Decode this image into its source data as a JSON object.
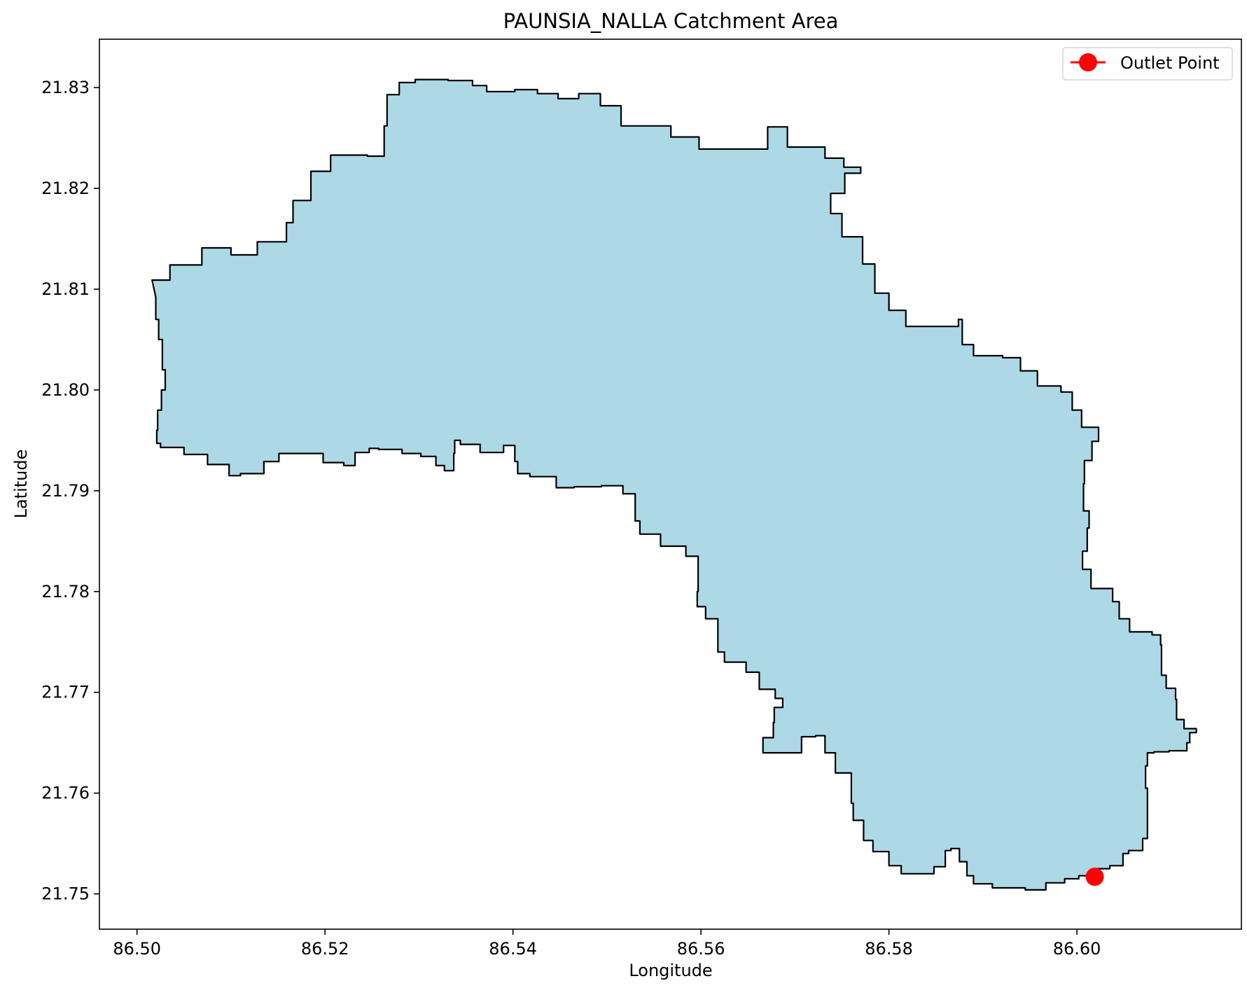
{
  "chart_data": {
    "type": "map",
    "title": "PAUNSIA_NALLA Catchment Area",
    "xlabel": "Longitude",
    "ylabel": "Latitude",
    "xlim": [
      86.496,
      86.6175
    ],
    "ylim": [
      21.7465,
      21.8348
    ],
    "xticks": [
      86.5,
      86.52,
      86.54,
      86.56,
      86.58,
      86.6
    ],
    "yticks": [
      21.75,
      21.76,
      21.77,
      21.78,
      21.79,
      21.8,
      21.81,
      21.82,
      21.83
    ],
    "x_decimals": 2,
    "y_decimals": 2,
    "grid": false,
    "legend": {
      "position": "top-right",
      "entries": [
        {
          "label": "Outlet Point",
          "color": "#ff0000",
          "marker": "circle"
        }
      ]
    },
    "catchment": {
      "fill": "#add8e6",
      "edge": "#000000",
      "boundary": [
        [
          86.5016,
          21.8109
        ],
        [
          86.5035,
          21.8124
        ],
        [
          86.5069,
          21.8141
        ],
        [
          86.51,
          21.8134
        ],
        [
          86.5128,
          21.8147
        ],
        [
          86.5159,
          21.8166
        ],
        [
          86.5166,
          21.8188
        ],
        [
          86.5185,
          21.8217
        ],
        [
          86.5206,
          21.8233
        ],
        [
          86.5245,
          21.8232
        ],
        [
          86.5263,
          21.8262
        ],
        [
          86.5266,
          21.8293
        ],
        [
          86.5279,
          21.8305
        ],
        [
          86.5296,
          21.8308
        ],
        [
          86.5331,
          21.8307
        ],
        [
          86.5357,
          21.8302
        ],
        [
          86.5372,
          21.8296
        ],
        [
          86.5402,
          21.8298
        ],
        [
          86.5426,
          21.8294
        ],
        [
          86.5448,
          21.8289
        ],
        [
          86.547,
          21.8294
        ],
        [
          86.5493,
          21.8282
        ],
        [
          86.5515,
          21.8262
        ],
        [
          86.5549,
          21.8262
        ],
        [
          86.5568,
          21.8251
        ],
        [
          86.5598,
          21.8239
        ],
        [
          86.564,
          21.8239
        ],
        [
          86.5671,
          21.8261
        ],
        [
          86.5692,
          21.8241
        ],
        [
          86.5732,
          21.823
        ],
        [
          86.5752,
          21.8221
        ],
        [
          86.577,
          21.8215
        ],
        [
          86.5753,
          21.8195
        ],
        [
          86.5738,
          21.8175
        ],
        [
          86.575,
          21.8152
        ],
        [
          86.5772,
          21.8125
        ],
        [
          86.5785,
          21.8096
        ],
        [
          86.58,
          21.8079
        ],
        [
          86.5818,
          21.8063
        ],
        [
          86.5863,
          21.8063
        ],
        [
          86.5874,
          21.807
        ],
        [
          86.5878,
          21.8045
        ],
        [
          86.589,
          21.8034
        ],
        [
          86.5921,
          21.8032
        ],
        [
          86.594,
          21.8019
        ],
        [
          86.5958,
          21.8004
        ],
        [
          86.5983,
          21.7998
        ],
        [
          86.5995,
          21.798
        ],
        [
          86.6005,
          21.7963
        ],
        [
          86.6023,
          21.7949
        ],
        [
          86.6016,
          21.793
        ],
        [
          86.6008,
          21.7907
        ],
        [
          86.6007,
          21.788
        ],
        [
          86.6013,
          21.7863
        ],
        [
          86.6011,
          21.784
        ],
        [
          86.6006,
          21.7822
        ],
        [
          86.6015,
          21.7803
        ],
        [
          86.6038,
          21.779
        ],
        [
          86.6045,
          21.7773
        ],
        [
          86.6056,
          21.776
        ],
        [
          86.608,
          21.7757
        ],
        [
          86.6089,
          21.7747
        ],
        [
          86.609,
          21.7717
        ],
        [
          86.6095,
          21.7704
        ],
        [
          86.6105,
          21.7693
        ],
        [
          86.6106,
          21.7673
        ],
        [
          86.6114,
          21.7664
        ],
        [
          86.6127,
          21.766
        ],
        [
          86.612,
          21.765
        ],
        [
          86.6117,
          21.7642
        ],
        [
          86.6098,
          21.7641
        ],
        [
          86.6082,
          21.764
        ],
        [
          86.6075,
          21.7627
        ],
        [
          86.6073,
          21.7605
        ],
        [
          86.6075,
          21.758
        ],
        [
          86.6075,
          21.7555
        ],
        [
          86.607,
          21.7543
        ],
        [
          86.6055,
          21.754
        ],
        [
          86.6049,
          21.7528
        ],
        [
          86.6035,
          21.7525
        ],
        [
          86.6017,
          21.7518
        ],
        [
          86.6002,
          21.7515
        ],
        [
          86.5987,
          21.7511
        ],
        [
          86.5967,
          21.7504
        ],
        [
          86.5945,
          21.7506
        ],
        [
          86.591,
          21.751
        ],
        [
          86.589,
          21.7518
        ],
        [
          86.5883,
          21.7532
        ],
        [
          86.5875,
          21.7545
        ],
        [
          86.5866,
          21.7543
        ],
        [
          86.586,
          21.7527
        ],
        [
          86.5848,
          21.752
        ],
        [
          86.5823,
          21.752
        ],
        [
          86.5813,
          21.7528
        ],
        [
          86.58,
          21.7542
        ],
        [
          86.5783,
          21.7553
        ],
        [
          86.5773,
          21.7573
        ],
        [
          86.5762,
          21.759
        ],
        [
          86.576,
          21.762
        ],
        [
          86.5743,
          21.764
        ],
        [
          86.5732,
          21.7657
        ],
        [
          86.5722,
          21.7656
        ],
        [
          86.5707,
          21.764
        ],
        [
          86.5673,
          21.764
        ],
        [
          86.5666,
          21.7655
        ],
        [
          86.5677,
          21.767
        ],
        [
          86.5678,
          21.7685
        ],
        [
          86.5687,
          21.7694
        ],
        [
          86.5679,
          21.7703
        ],
        [
          86.5662,
          21.772
        ],
        [
          86.5648,
          21.773
        ],
        [
          86.5625,
          21.774
        ],
        [
          86.5618,
          21.7773
        ],
        [
          86.5605,
          21.7785
        ],
        [
          86.5596,
          21.78
        ],
        [
          86.5597,
          21.7835
        ],
        [
          86.5584,
          21.7845
        ],
        [
          86.5557,
          21.7857
        ],
        [
          86.5535,
          21.787
        ],
        [
          86.553,
          21.7897
        ],
        [
          86.5517,
          21.7905
        ],
        [
          86.5494,
          21.7904
        ],
        [
          86.5465,
          21.7903
        ],
        [
          86.5446,
          21.7914
        ],
        [
          86.5418,
          21.7917
        ],
        [
          86.5405,
          21.7929
        ],
        [
          86.5402,
          21.7945
        ],
        [
          86.539,
          21.7938
        ],
        [
          86.5365,
          21.7946
        ],
        [
          86.5344,
          21.795
        ],
        [
          86.5338,
          21.7937
        ],
        [
          86.5337,
          21.792
        ],
        [
          86.5327,
          21.7925
        ],
        [
          86.5318,
          21.7934
        ],
        [
          86.5302,
          21.7937
        ],
        [
          86.5282,
          21.7941
        ],
        [
          86.5257,
          21.7942
        ],
        [
          86.5247,
          21.7938
        ],
        [
          86.5232,
          21.7925
        ],
        [
          86.522,
          21.7928
        ],
        [
          86.5198,
          21.7937
        ],
        [
          86.5173,
          21.7937
        ],
        [
          86.5151,
          21.7929
        ],
        [
          86.5135,
          21.7917
        ],
        [
          86.511,
          21.7915
        ],
        [
          86.5098,
          21.7926
        ],
        [
          86.5075,
          21.7936
        ],
        [
          86.505,
          21.7943
        ],
        [
          86.503,
          21.7943
        ],
        [
          86.5025,
          21.7947
        ],
        [
          86.5021,
          21.796
        ],
        [
          86.5022,
          21.798
        ],
        [
          86.5026,
          21.8
        ],
        [
          86.503,
          21.802
        ],
        [
          86.5027,
          21.805
        ],
        [
          86.5023,
          21.807
        ],
        [
          86.502,
          21.8092
        ]
      ]
    },
    "outlet_point": {
      "label": "Outlet Point",
      "lon": 86.6019,
      "lat": 21.7517,
      "color": "#ff0000"
    }
  }
}
